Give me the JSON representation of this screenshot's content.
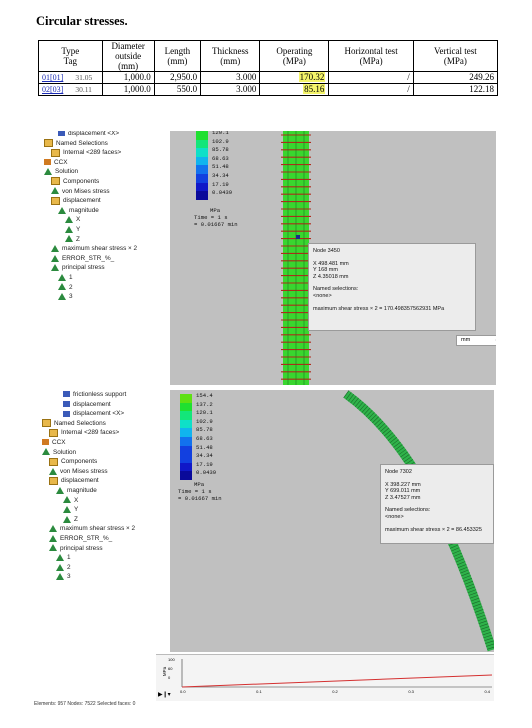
{
  "title": "Circular stresses.",
  "table": {
    "headers": {
      "type_tag": [
        "Type",
        "Tag"
      ],
      "diameter": [
        "Diameter",
        "outside",
        "(mm)"
      ],
      "length": [
        "Length",
        "(mm)"
      ],
      "thickness": [
        "Thickness",
        "(mm)"
      ],
      "operating": [
        "Operating",
        "(MPa)"
      ],
      "horizontal": [
        "Horizontal test",
        "(MPa)"
      ],
      "vertical": [
        "Vertical test",
        "(MPa)"
      ]
    },
    "rows": [
      {
        "link": "01[01]",
        "tag": "31.05",
        "diameter": "1,000.0",
        "length": "2,950.0",
        "thickness": "3.000",
        "operating": "170.32",
        "horizontal": "/",
        "vertical": "249.26"
      },
      {
        "link": "02[03]",
        "tag": "30.11",
        "diameter": "1,000.0",
        "length": "550.0",
        "thickness": "3.000",
        "operating": "85.16",
        "horizontal": "/",
        "vertical": "122.18"
      }
    ],
    "highlight_color": "#f4f46a"
  },
  "screenshot1": {
    "tree": [
      "displacement <X>",
      "Named Selections",
      "Internal <289 faces>",
      "CCX",
      "Solution",
      "Components",
      "von Mises stress",
      "displacement",
      "magnitude",
      "X",
      "Y",
      "Z",
      "maximum shear stress × 2",
      "ERROR_STR_%_",
      "principal stress",
      "1",
      "2",
      "3"
    ],
    "legend_values": [
      "120.1",
      "102.9",
      "85.78",
      "68.63",
      "51.48",
      "34.34",
      "17.19",
      "0.0439"
    ],
    "legend_unit": "MPa",
    "time_lines": [
      "Time = 1 s",
      "= 0.01667 min"
    ],
    "info": {
      "node": "Node 3450",
      "x": "X  498.481 mm",
      "y": "Y  168 mm",
      "z": "Z  4.35018 mm",
      "named_label": "Named selections:",
      "named_value": "<none>",
      "result": "maximum shear stress × 2 = 170.498357562931 MPa"
    },
    "unit": "mm"
  },
  "screenshot2": {
    "tree": [
      "frictionless support",
      "displacement",
      "displacement <X>",
      "Named Selections",
      "Internal <289 faces>",
      "CCX",
      "Solution",
      "Components",
      "von Mises stress",
      "displacement",
      "magnitude",
      "X",
      "Y",
      "Z",
      "maximum shear stress × 2",
      "ERROR_STR_%_",
      "principal stress",
      "1",
      "2",
      "3"
    ],
    "legend_values": [
      "154.4",
      "137.2",
      "120.1",
      "102.9",
      "85.78",
      "68.63",
      "51.48",
      "34.34",
      "17.19",
      "0.0439"
    ],
    "legend_unit": "MPa",
    "time_lines": [
      "Time = 1 s",
      "= 0.01667 min"
    ],
    "info": {
      "node": "Node 7302",
      "x": "X  398.227 mm",
      "y": "Y  699.011 mm",
      "z": "Z  3.47527 mm",
      "named_label": "Named selections:",
      "named_value": "<none>",
      "result": "maximum shear stress × 2 = 86.453325"
    },
    "plot_yticks": [
      "100",
      "60",
      "0"
    ],
    "plot_xticks": [
      "0.0",
      "0.1",
      "0.2",
      "0.3",
      "0.4"
    ],
    "plot_ylabel": "MPa",
    "status": "Elements: 957    Nodes: 7522    Selected faces: 0"
  }
}
